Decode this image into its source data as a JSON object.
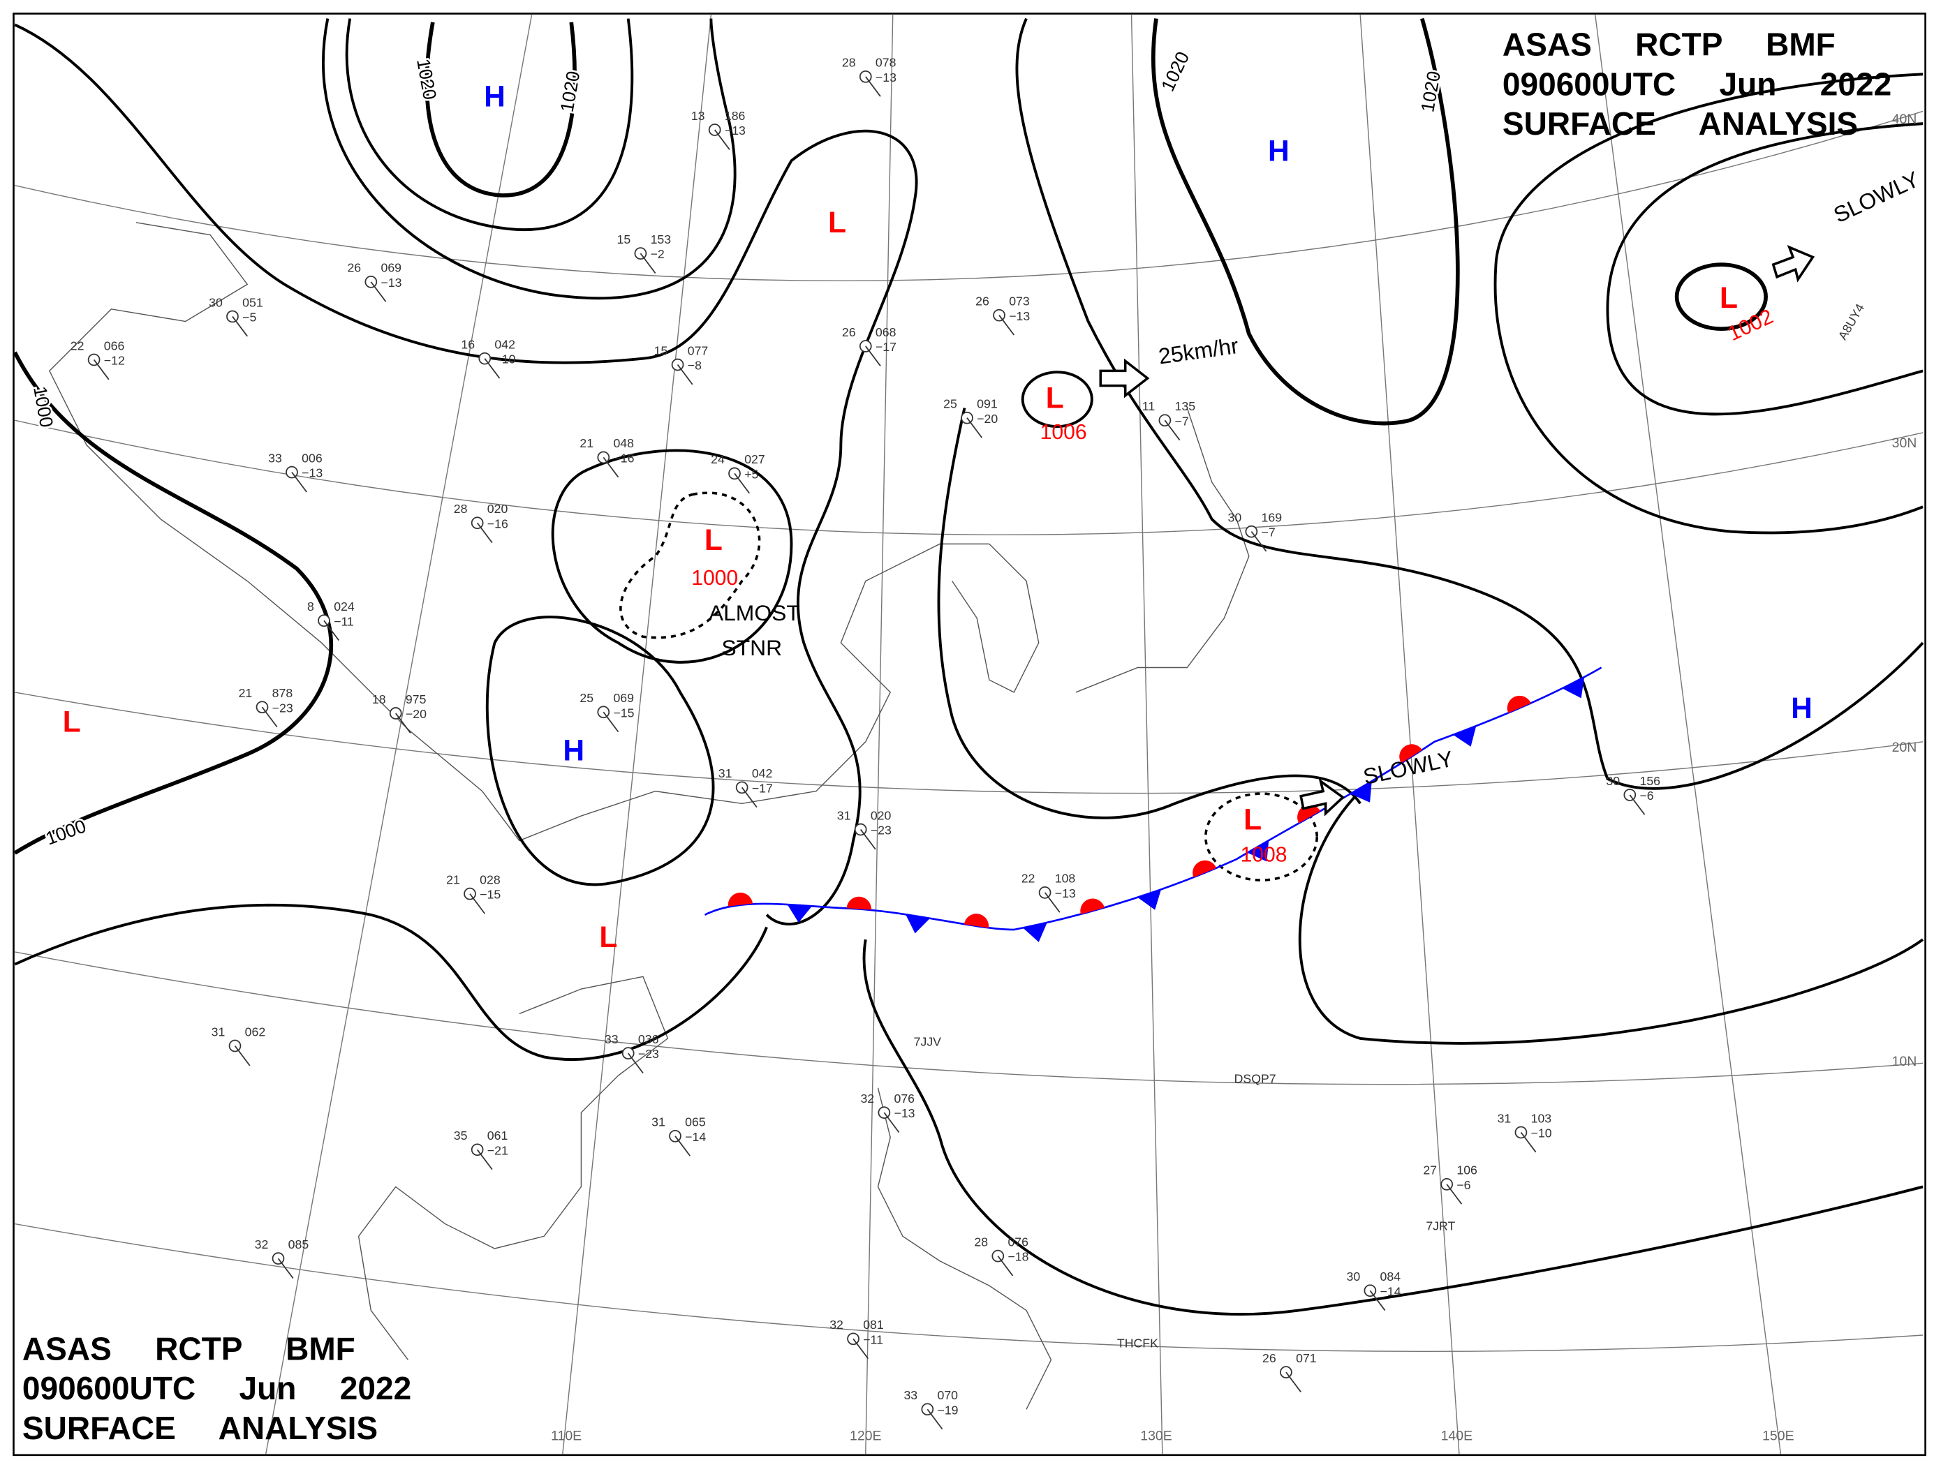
{
  "title_block": {
    "lines": [
      "ASAS RCTP BMF",
      "090600UTC Jun 2022",
      "SURFACE ANALYSIS"
    ]
  },
  "pressure_centers": [
    {
      "symbol": "H"
    },
    {
      "symbol": "H"
    },
    {
      "symbol": "H"
    },
    {
      "symbol": "H"
    },
    {
      "symbol": "L"
    },
    {
      "symbol": "L",
      "pressure": 1006
    },
    {
      "symbol": "L",
      "pressure": 1000
    },
    {
      "symbol": "L",
      "pressure": 1008
    },
    {
      "symbol": "L",
      "pressure": 1002
    },
    {
      "symbol": "L"
    },
    {
      "symbol": "L"
    }
  ],
  "isobar_labels": [
    "1020",
    "1020",
    "1020",
    "1020",
    "1000",
    "1000"
  ],
  "latitude_labels": [
    "40N",
    "30N",
    "20N",
    "10N"
  ],
  "longitude_labels": [
    "110E",
    "120E",
    "130E",
    "140E",
    "150E"
  ],
  "annotations": [
    "ALMOST",
    "STNR",
    "SLOWLY",
    "SLOWLY",
    "25km/hr"
  ],
  "ship_call_signs": [
    "7JJV",
    "DSQP7",
    "7JRT",
    "THCFK",
    "A8UY4"
  ],
  "stations": [
    {
      "temperature": "13",
      "pressure": "186",
      "dewpoint": "−13"
    },
    {
      "temperature": "28",
      "pressure": "078",
      "dewpoint": "−13"
    },
    {
      "temperature": "15",
      "pressure": "153",
      "dewpoint": "−2"
    },
    {
      "temperature": "26",
      "pressure": "069",
      "dewpoint": "−13"
    },
    {
      "temperature": "30",
      "pressure": "051",
      "dewpoint": "−5"
    },
    {
      "temperature": "22",
      "pressure": "066",
      "dewpoint": "−12"
    },
    {
      "temperature": "16",
      "pressure": "042",
      "dewpoint": "−10"
    },
    {
      "temperature": "15",
      "pressure": "077",
      "dewpoint": "−8"
    },
    {
      "temperature": "26",
      "pressure": "068",
      "dewpoint": "−17"
    },
    {
      "temperature": "26",
      "pressure": "073",
      "dewpoint": "−13"
    },
    {
      "temperature": "25",
      "pressure": "091",
      "dewpoint": "−20"
    },
    {
      "temperature": "21",
      "pressure": "048",
      "dewpoint": "−16"
    },
    {
      "temperature": "33",
      "pressure": "006",
      "dewpoint": "−13"
    },
    {
      "temperature": "28",
      "pressure": "020",
      "dewpoint": "−16"
    },
    {
      "temperature": "24",
      "pressure": "027",
      "dewpoint": "+5"
    },
    {
      "temperature": "8",
      "pressure": "024",
      "dewpoint": "−11"
    },
    {
      "temperature": "21",
      "pressure": "878",
      "dewpoint": "−23"
    },
    {
      "temperature": "18",
      "pressure": "975",
      "dewpoint": "−20"
    },
    {
      "temperature": "25",
      "pressure": "069",
      "dewpoint": "−15"
    },
    {
      "temperature": "31",
      "pressure": "042",
      "dewpoint": "−17"
    },
    {
      "temperature": "31",
      "pressure": "020",
      "dewpoint": "−23"
    },
    {
      "temperature": "22",
      "pressure": "108",
      "dewpoint": "−13"
    },
    {
      "temperature": "21",
      "pressure": "028",
      "dewpoint": "−15"
    },
    {
      "temperature": "31",
      "pressure": "062"
    },
    {
      "temperature": "33",
      "pressure": "036",
      "dewpoint": "−23"
    },
    {
      "temperature": "31",
      "pressure": "065",
      "dewpoint": "−14"
    },
    {
      "temperature": "35",
      "pressure": "061",
      "dewpoint": "−21"
    },
    {
      "temperature": "32",
      "pressure": "085"
    },
    {
      "temperature": "28",
      "pressure": "076",
      "dewpoint": "−18"
    },
    {
      "temperature": "27",
      "pressure": "106",
      "dewpoint": "−6"
    },
    {
      "temperature": "31",
      "pressure": "103",
      "dewpoint": "−10"
    },
    {
      "temperature": "30",
      "pressure": "156",
      "dewpoint": "−6"
    },
    {
      "temperature": "30",
      "pressure": "084",
      "dewpoint": "−14"
    },
    {
      "temperature": "26",
      "pressure": "071"
    },
    {
      "temperature": "30",
      "pressure": "169",
      "dewpoint": "−7"
    },
    {
      "temperature": "11",
      "pressure": "135",
      "dewpoint": "−7"
    },
    {
      "temperature": "32",
      "pressure": "081",
      "dewpoint": "−11"
    },
    {
      "temperature": "33",
      "pressure": "070",
      "dewpoint": "−19"
    },
    {
      "temperature": "32",
      "pressure": "076",
      "dewpoint": "−13"
    }
  ]
}
